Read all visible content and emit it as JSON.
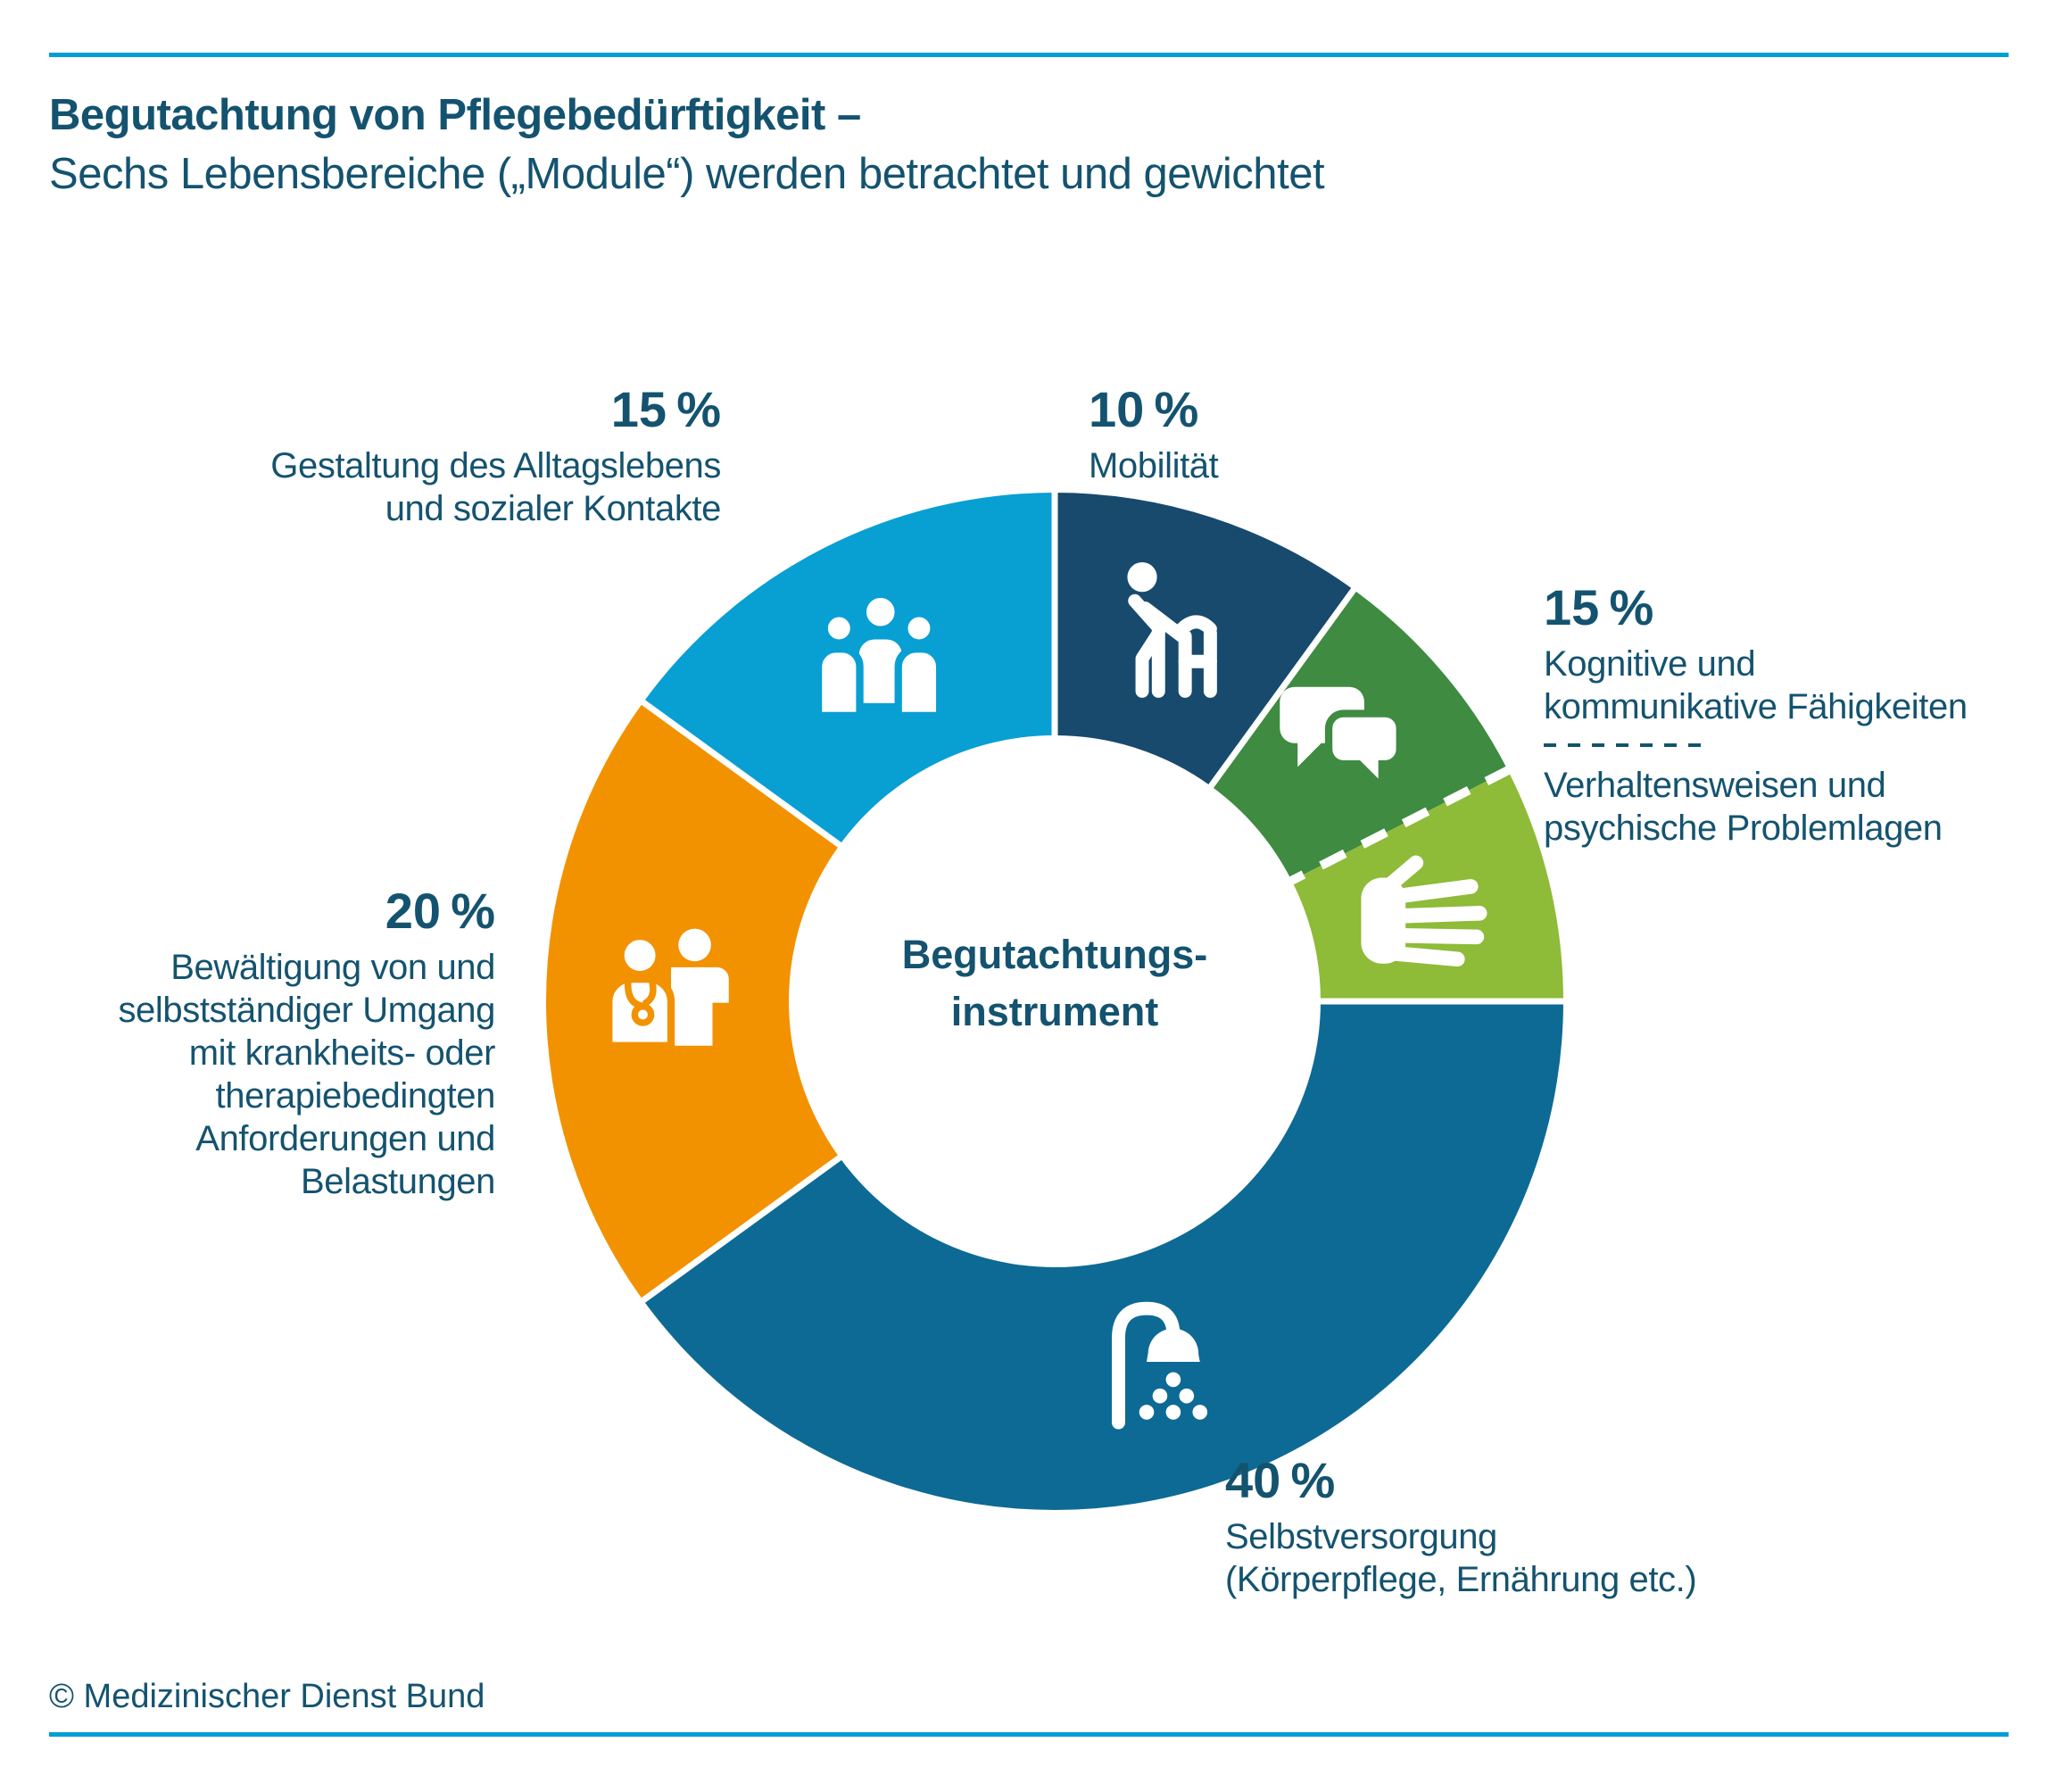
{
  "page": {
    "title_line1": "Begutachtung von Pflegebedürftigkeit –",
    "title_line2": "Sechs Lebensbereiche („Module“) werden betrachtet und gewichtet",
    "footer": "© Medizinischer Dienst Bund",
    "accent_rule_color": "#009ed6",
    "text_color": "#14536f",
    "background_color": "#ffffff"
  },
  "chart_data": {
    "type": "pie",
    "subtype": "donut",
    "title": "Begutachtungsinstrument",
    "center_label_line1": "Begutachtungs-",
    "center_label_line2": "instrument",
    "unit": "%",
    "total": 100,
    "start_angle_deg": 0,
    "clockwise": true,
    "legend_position": "around",
    "segments": [
      {
        "slug": "mobilitaet",
        "label": "Mobilität",
        "weight_label": "10 %",
        "weight_pct": 10,
        "arc_pct": 10,
        "color": "#174a6d",
        "icon": "person-with-walker-icon"
      },
      {
        "slug": "kognitive-faehigkeiten",
        "label": "Kognitive und kommunikative Fähigkeiten",
        "weight_label": "15 %",
        "weight_pct": 15,
        "arc_pct": 7.5,
        "color": "#3e8b41",
        "icon": "speech-bubbles-icon",
        "divider_after": "dashed"
      },
      {
        "slug": "verhaltensweisen",
        "label": "Verhaltensweisen und psychische Problemlagen",
        "weight_label": "15 %",
        "weight_pct": 15,
        "arc_pct": 7.5,
        "color": "#8ebb38",
        "icon": "hand-icon"
      },
      {
        "slug": "selbstversorgung",
        "label": "Selbstversorgung (Körperpflege, Ernährung etc.)",
        "weight_label": "40 %",
        "weight_pct": 40,
        "arc_pct": 40,
        "color": "#0d6a95",
        "icon": "shower-icon"
      },
      {
        "slug": "bewaeltigung",
        "label": "Bewältigung von und selbstständiger Umgang mit krankheits- oder therapiebedingten Anforderungen und Belastungen",
        "weight_label": "20 %",
        "weight_pct": 20,
        "arc_pct": 20,
        "color": "#f29200",
        "icon": "doctor-patient-icon"
      },
      {
        "slug": "gestaltung-alltagsleben",
        "label": "Gestaltung des Alltagslebens und sozialer Kontakte",
        "weight_label": "15 %",
        "weight_pct": 15,
        "arc_pct": 15,
        "color": "#089fd3",
        "icon": "people-group-icon"
      }
    ]
  },
  "callouts": {
    "mobilitaet": {
      "lines": [
        "Mobilität"
      ]
    },
    "kognitiv": {
      "lines_top": [
        "Kognitive und",
        "kommunikative Fähigkeiten"
      ],
      "lines_bottom": [
        "Verhaltensweisen und",
        "psychische Problemlagen"
      ]
    },
    "gestaltung": {
      "lines": [
        "Gestaltung des Alltagslebens",
        "und sozialer Kontakte"
      ]
    },
    "bewaeltigung": {
      "lines": [
        "Bewältigung von und",
        "selbstständiger Umgang",
        "mit krankheits- oder",
        "therapiebedingten",
        "Anforderungen und",
        "Belastungen"
      ]
    },
    "selbstversorgung": {
      "lines": [
        "Selbstversorgung",
        "(Körperpflege, Ernährung etc.)"
      ]
    }
  }
}
